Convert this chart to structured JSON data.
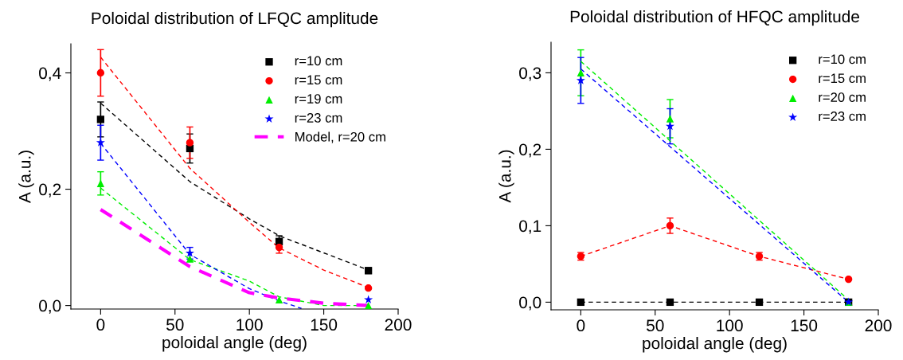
{
  "chart_data": [
    {
      "type": "scatter",
      "title": "Poloidal distribution of LFQC amplitude",
      "xlabel": "poloidal angle (deg)",
      "ylabel": "A (a.u.)",
      "x": [
        0,
        60,
        120,
        180
      ],
      "xlim": [
        -20,
        200
      ],
      "xticks": [
        0,
        50,
        100,
        150,
        200
      ],
      "ylim": [
        -0.006,
        0.45
      ],
      "yticks": [
        {
          "value": 0,
          "label": "0,0"
        },
        {
          "value": 0.2,
          "label": "0,2"
        },
        {
          "value": 0.4,
          "label": "0,4"
        }
      ],
      "legend": "top right",
      "grid": false,
      "series": [
        {
          "name": "r=10 cm",
          "color": "#000000",
          "marker": "square",
          "values": [
            0.32,
            0.27,
            0.11,
            0.06
          ],
          "errors": [
            0.03,
            0.025,
            0.01,
            0.005
          ]
        },
        {
          "name": "r=15 cm",
          "color": "#ff0000",
          "marker": "circle",
          "values": [
            0.4,
            0.28,
            0.1,
            0.03
          ],
          "errors": [
            0.04,
            0.027,
            0.01,
            null
          ]
        },
        {
          "name": "r=19 cm",
          "color": "#00ee00",
          "marker": "triangle",
          "values": [
            0.21,
            0.08,
            0.01,
            0.0
          ],
          "errors": [
            0.02,
            null,
            null,
            null
          ]
        },
        {
          "name": "r=23 cm",
          "color": "#0000ff",
          "marker": "star",
          "values": [
            0.28,
            0.09,
            null,
            0.01
          ],
          "errors": [
            0.03,
            0.01,
            null,
            null
          ]
        },
        {
          "type": "line",
          "color": "#000000",
          "line_style": "dashed",
          "x": [
            0,
            60,
            100,
            120,
            180
          ],
          "values": [
            0.348,
            0.213,
            0.149,
            0.12,
            0.061
          ]
        },
        {
          "type": "line",
          "color": "#ff0000",
          "line_style": "dashed",
          "x": [
            0,
            60,
            100,
            120,
            150,
            180
          ],
          "values": [
            0.427,
            0.236,
            0.143,
            0.099,
            0.061,
            0.031
          ]
        },
        {
          "type": "line",
          "color": "#00ee00",
          "line_style": "dashed",
          "x": [
            0,
            60,
            100,
            120,
            150,
            180
          ],
          "values": [
            0.202,
            0.079,
            0.042,
            0.015,
            0.0,
            0.0
          ]
        },
        {
          "type": "line",
          "color": "#0000ff",
          "line_style": "dashed",
          "x": [
            0,
            60,
            100,
            120,
            135
          ],
          "values": [
            0.279,
            0.088,
            0.029,
            0.008,
            -0.005
          ]
        },
        {
          "type": "line",
          "name": "Model, r=20 cm",
          "color": "#ff00ff",
          "line_style": "dashed",
          "x": [
            0,
            60,
            100,
            120,
            150,
            180
          ],
          "values": [
            0.165,
            0.067,
            0.022,
            0.013,
            0.004,
            0.0
          ]
        }
      ]
    },
    {
      "type": "scatter",
      "title": "Poloidal distribution of HFQC amplitude",
      "xlabel": "poloidal angle (deg)",
      "ylabel": "A (a.u.)",
      "x": [
        0,
        60,
        120,
        180
      ],
      "xlim": [
        -20,
        200
      ],
      "xticks": [
        0,
        50,
        100,
        150,
        200
      ],
      "ylim": [
        -0.01,
        0.34
      ],
      "yticks": [
        {
          "value": 0,
          "label": "0,0"
        },
        {
          "value": 0.1,
          "label": "0,1"
        },
        {
          "value": 0.2,
          "label": "0,2"
        },
        {
          "value": 0.3,
          "label": "0,3"
        }
      ],
      "legend": "top right",
      "grid": false,
      "series": [
        {
          "name": "r=10 cm",
          "color": "#000000",
          "marker": "square",
          "values": [
            0,
            0,
            0,
            0
          ]
        },
        {
          "name": "r=15 cm",
          "color": "#ff0000",
          "marker": "circle",
          "values": [
            0.06,
            0.1,
            0.06,
            0.03
          ],
          "errors": [
            0.005,
            0.01,
            0.005,
            null
          ]
        },
        {
          "name": "r=20 cm",
          "color": "#00ee00",
          "marker": "triangle",
          "values": [
            0.3,
            0.24,
            null,
            0.0
          ],
          "errors": [
            0.03,
            0.025,
            null,
            null
          ]
        },
        {
          "name": "r=23 cm",
          "color": "#0000ff",
          "marker": "star",
          "values": [
            0.29,
            0.23,
            null,
            0.0
          ],
          "errors": [
            0.03,
            0.023,
            null,
            null
          ]
        },
        {
          "type": "line",
          "color": "#000000",
          "line_style": "dashed",
          "x": [
            0,
            60,
            120,
            180
          ],
          "values": [
            0,
            0,
            0,
            0
          ]
        },
        {
          "type": "line",
          "color": "#ff0000",
          "line_style": "dashed",
          "x": [
            0,
            60,
            120,
            180
          ],
          "values": [
            0.06,
            0.1,
            0.06,
            0.03
          ]
        },
        {
          "type": "line",
          "color": "#00ee00",
          "line_style": "dashed",
          "x": [
            0,
            180
          ],
          "values": [
            0.315,
            0.003
          ]
        },
        {
          "type": "line",
          "color": "#0000ff",
          "line_style": "dashed",
          "x": [
            0,
            180
          ],
          "values": [
            0.305,
            0.0
          ]
        }
      ]
    }
  ]
}
